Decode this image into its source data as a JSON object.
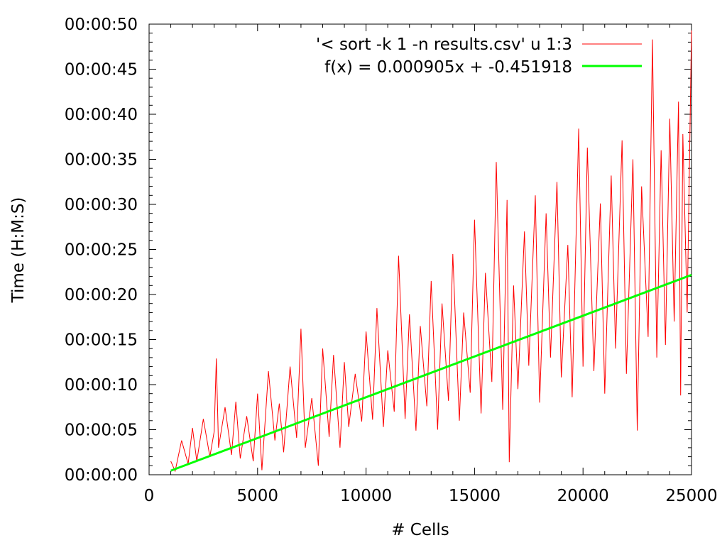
{
  "chart_data": {
    "type": "line",
    "xlabel": "# Cells",
    "ylabel": "Time (H:M:S)",
    "xlim": [
      0,
      25000
    ],
    "ylim": [
      0,
      50
    ],
    "x_ticks": [
      0,
      5000,
      10000,
      15000,
      20000,
      25000
    ],
    "x_tick_labels": [
      "0",
      "5000",
      "10000",
      "15000",
      "20000",
      "25000"
    ],
    "y_ticks": [
      0,
      5,
      10,
      15,
      20,
      25,
      30,
      35,
      40,
      45,
      50
    ],
    "y_tick_labels": [
      "00:00:00",
      "00:00:05",
      "00:00:10",
      "00:00:15",
      "00:00:20",
      "00:00:25",
      "00:00:30",
      "00:00:35",
      "00:00:40",
      "00:00:45",
      "00:00:50"
    ],
    "grid": false,
    "legend_position": "top-right",
    "series": [
      {
        "name": "'< sort -k 1 -n results.csv' u 1:3",
        "kind": "data",
        "color": "#ff0000",
        "x": [
          1000,
          1200,
          1500,
          1800,
          2000,
          2200,
          2500,
          2800,
          3000,
          3100,
          3200,
          3500,
          3800,
          4000,
          4200,
          4500,
          4800,
          5000,
          5200,
          5500,
          5800,
          6000,
          6200,
          6500,
          6800,
          7000,
          7200,
          7500,
          7800,
          8000,
          8300,
          8500,
          8800,
          9000,
          9200,
          9500,
          9800,
          10000,
          10300,
          10500,
          10800,
          11000,
          11300,
          11500,
          11800,
          12000,
          12300,
          12500,
          12800,
          13000,
          13300,
          13500,
          13800,
          14000,
          14300,
          14500,
          14800,
          15000,
          15300,
          15500,
          15800,
          16000,
          16300,
          16500,
          16600,
          16800,
          17000,
          17300,
          17500,
          17800,
          18000,
          18300,
          18500,
          18800,
          19000,
          19300,
          19500,
          19800,
          20000,
          20200,
          20500,
          20800,
          21000,
          21300,
          21500,
          21800,
          22000,
          22300,
          22500,
          22700,
          23000,
          23200,
          23400,
          23600,
          23800,
          24000,
          24200,
          24400,
          24500,
          24600,
          24800,
          25000
        ],
        "y": [
          1.5,
          0.4,
          3.8,
          1.2,
          5.2,
          1.5,
          6.2,
          2.0,
          4.8,
          12.9,
          3.0,
          7.5,
          2.2,
          8.1,
          1.8,
          6.5,
          1.5,
          9.0,
          0.5,
          11.5,
          3.8,
          7.9,
          2.5,
          12.0,
          4.1,
          16.2,
          3.0,
          8.5,
          1.0,
          14.0,
          4.2,
          13.3,
          3.0,
          12.5,
          5.3,
          11.2,
          5.9,
          15.9,
          6.1,
          18.5,
          5.3,
          13.8,
          7.0,
          24.3,
          6.2,
          17.8,
          4.9,
          16.5,
          7.6,
          21.5,
          5.0,
          19.0,
          8.2,
          24.5,
          6.0,
          18.0,
          9.1,
          28.3,
          6.8,
          22.4,
          10.3,
          34.7,
          7.2,
          30.5,
          1.4,
          21.0,
          9.5,
          27.0,
          12.1,
          31.0,
          8.0,
          29.0,
          13.0,
          32.5,
          10.8,
          25.5,
          8.6,
          38.4,
          12.0,
          36.3,
          11.5,
          30.1,
          9.0,
          33.2,
          14.0,
          37.1,
          11.2,
          35.0,
          4.9,
          32.0,
          15.3,
          48.3,
          13.0,
          36.0,
          14.4,
          39.5,
          17.0,
          41.4,
          8.8,
          37.8,
          18.0,
          49.3
        ]
      },
      {
        "name": "f(x) = 0.000905x + -0.451918",
        "kind": "fit",
        "color": "#00ff00",
        "slope": 0.000905,
        "intercept": -0.451918,
        "x_range": [
          1000,
          25000
        ]
      }
    ]
  }
}
